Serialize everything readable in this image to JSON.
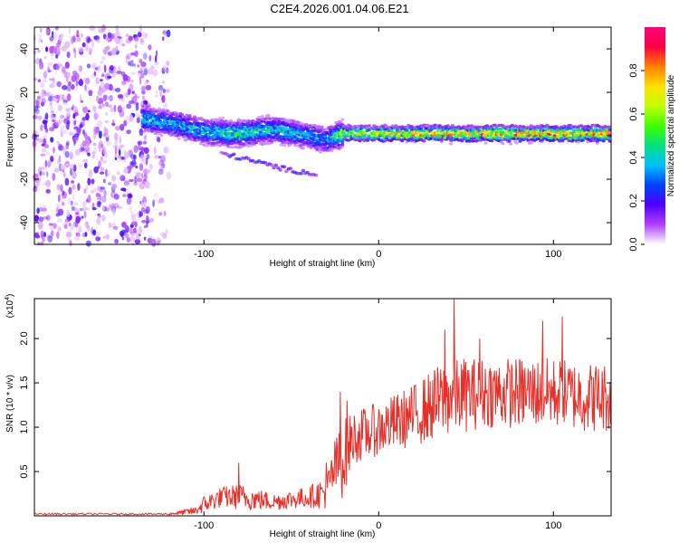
{
  "chart_data": [
    {
      "type": "heatmap",
      "title": "C2E4.2026.001.04.06.E21",
      "xlabel": "Height of straight line (km)",
      "ylabel": "Frequency (Hz)",
      "xlim": [
        -197,
        133
      ],
      "ylim": [
        -50,
        50
      ],
      "xticks": [
        -100,
        0,
        100
      ],
      "yticks": [
        -40,
        -20,
        0,
        20,
        40
      ],
      "colorbar": {
        "label": "Normalized spectral amplitude",
        "range": [
          0,
          1
        ],
        "ticks": [
          "0.0",
          "0.2",
          "0.4",
          "0.6",
          "0.8"
        ],
        "tick_values": [
          0.0,
          0.2,
          0.4,
          0.6,
          0.8
        ],
        "colors": [
          "#ffffff",
          "#b040ff",
          "#5000ff",
          "#0040ff",
          "#00c0ff",
          "#00e080",
          "#40ff00",
          "#c0ff00",
          "#ffe000",
          "#ff8000",
          "#ff0040",
          "#ff0080"
        ]
      },
      "noise_region_x": [
        -197,
        -120
      ],
      "ridge": {
        "x": [
          -135,
          -120,
          -100,
          -80,
          -60,
          -40,
          -30,
          -20,
          0,
          20,
          40,
          60,
          80,
          100,
          133
        ],
        "freq": [
          8,
          6,
          2,
          1,
          3,
          0,
          -2,
          1,
          1,
          1,
          1,
          1,
          1,
          1,
          1
        ],
        "amplitude": [
          0.45,
          0.4,
          0.45,
          0.55,
          0.45,
          0.4,
          0.35,
          0.7,
          0.8,
          0.85,
          0.85,
          0.85,
          0.9,
          0.9,
          0.9
        ]
      },
      "branch": {
        "x": [
          -90,
          -80,
          -70,
          -60,
          -50,
          -40,
          -35
        ],
        "freq": [
          -8,
          -10,
          -12,
          -14,
          -16,
          -17,
          -18
        ],
        "amplitude": [
          0.15,
          0.2,
          0.2,
          0.15,
          0.15,
          0.25,
          0.1
        ]
      }
    },
    {
      "type": "line",
      "xlabel": "Height of straight line (km)",
      "ylabel": "SNR (10 * v/v)",
      "multiplier": "(x10",
      "multiplier_exp": "4",
      "multiplier_close": ")",
      "xlim": [
        -197,
        133
      ],
      "ylim": [
        0,
        2.45
      ],
      "xticks": [
        -100,
        0,
        100
      ],
      "yticks": [
        "0.5",
        "1.0",
        "1.5",
        "2.0"
      ],
      "ytick_values": [
        0.5,
        1.0,
        1.5,
        2.0
      ],
      "series": [
        {
          "name": "SNR",
          "color": "#e8302a",
          "envelope": {
            "x": [
              -197,
              -120,
              -105,
              -100,
              -90,
              -80,
              -60,
              -40,
              -30,
              -25,
              -20,
              -15,
              0,
              20,
              40,
              60,
              80,
              100,
              120,
              133
            ],
            "base": [
              0.02,
              0.02,
              0.05,
              0.12,
              0.2,
              0.2,
              0.15,
              0.2,
              0.25,
              0.5,
              0.6,
              0.85,
              0.95,
              1.1,
              1.3,
              1.35,
              1.35,
              1.35,
              1.3,
              1.3
            ],
            "amp": [
              0.01,
              0.01,
              0.05,
              0.1,
              0.12,
              0.15,
              0.1,
              0.12,
              0.2,
              0.35,
              0.45,
              0.3,
              0.3,
              0.35,
              0.45,
              0.4,
              0.4,
              0.4,
              0.4,
              0.4
            ]
          },
          "peaks": [
            {
              "x": -80,
              "y": 0.6
            },
            {
              "x": -30,
              "y": 0.6
            },
            {
              "x": -22,
              "y": 1.4
            },
            {
              "x": -18,
              "y": 1.3
            },
            {
              "x": 38,
              "y": 2.1
            },
            {
              "x": 43,
              "y": 2.45
            },
            {
              "x": 58,
              "y": 2.0
            },
            {
              "x": 94,
              "y": 2.2
            },
            {
              "x": 105,
              "y": 2.25
            }
          ]
        }
      ]
    }
  ]
}
